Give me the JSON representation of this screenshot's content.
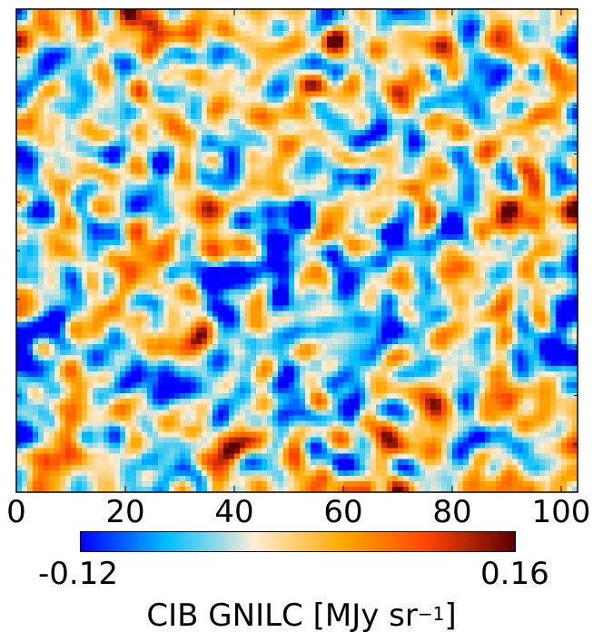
{
  "chart_data": {
    "type": "heatmap",
    "title": "",
    "xlabel": "",
    "ylabel": "",
    "x_range": [
      0,
      103
    ],
    "x_ticks": [
      "0",
      "20",
      "40",
      "60",
      "80",
      "100"
    ],
    "x_tick_values": [
      0,
      20,
      40,
      60,
      80,
      100
    ],
    "y_tick_labels_shown": false,
    "grid_size": [
      103,
      88
    ],
    "colormap": [
      "#0000ff",
      "#00bfff",
      "#ffeed4",
      "#ffaa00",
      "#ff4400",
      "#5a0000"
    ],
    "colorbar": {
      "min_label": "-0.12",
      "max_label": "0.16",
      "vmin": -0.12,
      "vmax": 0.16,
      "label_text": "CIB GNILC [MJy sr",
      "label_exponent": "−1",
      "label_suffix": "]"
    }
  }
}
